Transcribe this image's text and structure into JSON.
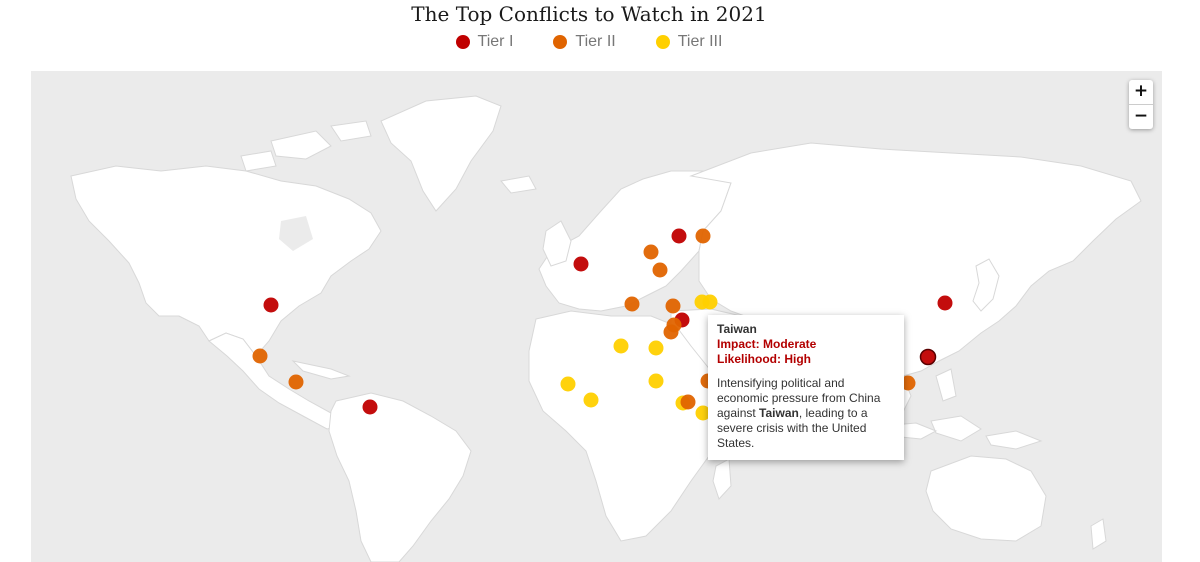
{
  "title": "The Top Conflicts to Watch in 2021",
  "legend": [
    {
      "label": "Tier I",
      "color": "#c00000"
    },
    {
      "label": "Tier II",
      "color": "#e06400"
    },
    {
      "label": "Tier III",
      "color": "#ffd000"
    }
  ],
  "zoom": {
    "in_label": "+",
    "out_label": "−"
  },
  "markers": [
    {
      "tier": 1,
      "near": "United States"
    },
    {
      "tier": 2,
      "near": "Mexico (north)"
    },
    {
      "tier": 2,
      "near": "Central America"
    },
    {
      "tier": 1,
      "near": "Venezuela"
    },
    {
      "tier": 1,
      "near": "Europe (west)"
    },
    {
      "tier": 1,
      "near": "Russia / Belarus"
    },
    {
      "tier": 2,
      "near": "Russia"
    },
    {
      "tier": 2,
      "near": "Belarus / Ukraine"
    },
    {
      "tier": 2,
      "near": "Ukraine"
    },
    {
      "tier": 2,
      "near": "Mediterranean"
    },
    {
      "tier": 2,
      "near": "Turkey / Syria"
    },
    {
      "tier": 3,
      "near": "Caucasus"
    },
    {
      "tier": 3,
      "near": "Caucasus"
    },
    {
      "tier": 1,
      "near": "Israel / Lebanon"
    },
    {
      "tier": 2,
      "near": "Levant"
    },
    {
      "tier": 2,
      "near": "Egypt / Sinai"
    },
    {
      "tier": 3,
      "near": "Libya"
    },
    {
      "tier": 3,
      "near": "Egypt"
    },
    {
      "tier": 3,
      "near": "Mali"
    },
    {
      "tier": 3,
      "near": "Nigeria"
    },
    {
      "tier": 3,
      "near": "Sudan"
    },
    {
      "tier": 3,
      "near": "Ethiopia"
    },
    {
      "tier": 2,
      "near": "Ethiopia"
    },
    {
      "tier": 3,
      "near": "Horn of Africa"
    },
    {
      "tier": 2,
      "near": "Arabian Peninsula"
    },
    {
      "tier": 1,
      "near": "Korean Peninsula"
    },
    {
      "tier": 1,
      "near": "Taiwan"
    },
    {
      "tier": 2,
      "near": "South China Sea"
    }
  ],
  "tooltip": {
    "name": "Taiwan",
    "impact": "Impact: Moderate",
    "likelihood": "Likelihood: High",
    "desc_pre": "Intensifying political and economic pressure from China against ",
    "desc_bold": "Taiwan",
    "desc_post": ", leading to a severe crisis with the United States."
  }
}
